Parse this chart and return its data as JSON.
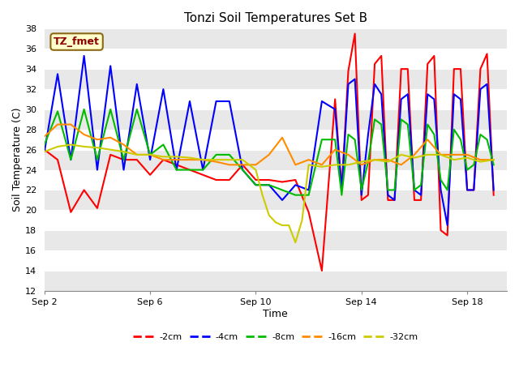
{
  "title": "Tonzi Soil Temperatures Set B",
  "xlabel": "Time",
  "ylabel": "Soil Temperature (C)",
  "ylim": [
    12,
    38
  ],
  "yticks": [
    12,
    14,
    16,
    18,
    20,
    22,
    24,
    26,
    28,
    30,
    32,
    34,
    36,
    38
  ],
  "annotation_label": "TZ_fmet",
  "annotation_color": "#8B0000",
  "annotation_bg": "#FFFFCC",
  "annotation_border": "#8B6914",
  "fig_bg": "#FFFFFF",
  "plot_bg": "#FFFFFF",
  "band_color_light": "#E8E8E8",
  "band_color_white": "#FFFFFF",
  "series": {
    "neg2cm": {
      "color": "#FF0000",
      "label": "-2cm",
      "x": [
        2.0,
        2.5,
        3.0,
        3.5,
        4.0,
        4.5,
        5.0,
        5.5,
        6.0,
        6.5,
        7.0,
        7.5,
        8.0,
        8.5,
        9.0,
        9.5,
        10.0,
        10.5,
        11.0,
        11.5,
        12.0,
        12.5,
        13.0,
        13.25,
        13.5,
        13.75,
        14.0,
        14.25,
        14.5,
        14.75,
        15.0,
        15.25,
        15.5,
        15.75,
        16.0,
        16.25,
        16.5,
        16.75,
        17.0,
        17.25,
        17.5,
        17.75,
        18.0,
        18.25,
        18.5,
        18.75,
        19.0
      ],
      "y": [
        26.0,
        25.0,
        19.8,
        22.0,
        20.2,
        25.5,
        25.0,
        25.0,
        23.5,
        25.0,
        24.5,
        24.0,
        23.5,
        23.0,
        23.0,
        24.5,
        23.0,
        23.0,
        22.8,
        23.0,
        19.8,
        14.0,
        31.0,
        22.0,
        33.8,
        37.5,
        21.0,
        21.5,
        34.5,
        35.3,
        21.0,
        21.0,
        34.0,
        34.0,
        21.0,
        21.0,
        34.5,
        35.3,
        18.0,
        17.5,
        34.0,
        34.0,
        22.0,
        22.0,
        34.0,
        35.5,
        21.5
      ]
    },
    "neg4cm": {
      "color": "#0000FF",
      "label": "-4cm",
      "x": [
        2.0,
        2.5,
        3.0,
        3.5,
        4.0,
        4.5,
        5.0,
        5.5,
        6.0,
        6.5,
        7.0,
        7.5,
        8.0,
        8.5,
        9.0,
        9.5,
        10.0,
        10.5,
        11.0,
        11.5,
        12.0,
        12.5,
        13.0,
        13.25,
        13.5,
        13.75,
        14.0,
        14.25,
        14.5,
        14.75,
        15.0,
        15.25,
        15.5,
        15.75,
        16.0,
        16.25,
        16.5,
        16.75,
        17.0,
        17.25,
        17.5,
        17.75,
        18.0,
        18.25,
        18.5,
        18.75,
        19.0
      ],
      "y": [
        25.8,
        33.5,
        25.0,
        35.3,
        24.0,
        34.3,
        24.0,
        32.5,
        25.0,
        32.0,
        24.0,
        30.8,
        24.0,
        30.8,
        30.8,
        24.0,
        22.5,
        22.5,
        21.0,
        22.5,
        22.0,
        30.8,
        30.0,
        22.0,
        32.5,
        33.0,
        21.5,
        27.5,
        32.5,
        31.5,
        21.5,
        21.0,
        31.0,
        31.5,
        22.0,
        21.5,
        31.5,
        31.0,
        22.0,
        18.5,
        31.5,
        31.0,
        22.0,
        22.0,
        32.0,
        32.5,
        22.0
      ]
    },
    "neg8cm": {
      "color": "#00BB00",
      "label": "-8cm",
      "x": [
        2.0,
        2.5,
        3.0,
        3.5,
        4.0,
        4.5,
        5.0,
        5.5,
        6.0,
        6.5,
        7.0,
        7.5,
        8.0,
        8.5,
        9.0,
        9.5,
        10.0,
        10.5,
        11.0,
        11.5,
        12.0,
        12.5,
        13.0,
        13.25,
        13.5,
        13.75,
        14.0,
        14.25,
        14.5,
        14.75,
        15.0,
        15.25,
        15.5,
        15.75,
        16.0,
        16.25,
        16.5,
        16.75,
        17.0,
        17.25,
        17.5,
        17.75,
        18.0,
        18.25,
        18.5,
        18.75,
        19.0
      ],
      "y": [
        26.5,
        29.8,
        25.0,
        30.0,
        25.0,
        30.0,
        25.0,
        30.0,
        25.5,
        26.5,
        24.0,
        24.0,
        24.0,
        25.5,
        25.5,
        24.0,
        22.5,
        22.5,
        22.0,
        21.5,
        21.5,
        27.0,
        27.0,
        21.5,
        27.5,
        27.0,
        22.0,
        24.8,
        29.0,
        28.5,
        22.0,
        22.0,
        29.0,
        28.5,
        22.0,
        22.5,
        28.5,
        27.5,
        23.0,
        22.0,
        28.0,
        27.0,
        24.0,
        24.5,
        27.5,
        27.0,
        24.5
      ]
    },
    "neg16cm": {
      "color": "#FF8C00",
      "label": "-16cm",
      "x": [
        2.0,
        2.5,
        3.0,
        3.5,
        4.0,
        4.5,
        5.0,
        5.5,
        6.0,
        6.5,
        7.0,
        7.5,
        8.0,
        8.5,
        9.0,
        9.5,
        10.0,
        10.5,
        11.0,
        11.5,
        12.0,
        12.5,
        13.0,
        13.5,
        14.0,
        14.5,
        15.0,
        15.5,
        16.0,
        16.5,
        17.0,
        17.5,
        18.0,
        18.5,
        19.0
      ],
      "y": [
        27.3,
        28.5,
        28.5,
        27.5,
        27.0,
        27.2,
        26.5,
        25.5,
        25.5,
        25.0,
        25.0,
        25.0,
        25.0,
        24.8,
        24.5,
        24.5,
        24.5,
        25.5,
        27.2,
        24.5,
        25.0,
        24.5,
        26.0,
        25.5,
        24.5,
        25.0,
        25.0,
        24.5,
        25.5,
        27.0,
        25.5,
        25.5,
        25.5,
        25.0,
        25.0
      ]
    },
    "neg32cm": {
      "color": "#CCCC00",
      "label": "-32cm",
      "x": [
        2.0,
        2.5,
        3.0,
        3.5,
        4.0,
        4.5,
        5.0,
        5.5,
        6.0,
        6.5,
        7.0,
        7.5,
        8.0,
        8.5,
        9.0,
        9.5,
        10.0,
        10.25,
        10.5,
        10.75,
        11.0,
        11.25,
        11.5,
        11.75,
        12.0,
        12.5,
        13.0,
        13.5,
        14.0,
        14.5,
        15.0,
        15.5,
        16.0,
        16.5,
        17.0,
        17.5,
        18.0,
        18.5,
        19.0
      ],
      "y": [
        25.8,
        26.3,
        26.5,
        26.3,
        26.2,
        26.0,
        25.8,
        25.5,
        25.5,
        25.3,
        25.3,
        25.2,
        25.0,
        25.0,
        25.0,
        25.0,
        24.0,
        21.5,
        19.5,
        18.8,
        18.5,
        18.5,
        16.8,
        19.0,
        24.5,
        24.3,
        24.5,
        24.5,
        24.8,
        25.0,
        24.8,
        25.5,
        25.2,
        25.5,
        25.5,
        25.0,
        25.2,
        24.8,
        25.0
      ]
    }
  },
  "xtick_labels": [
    "Sep 2",
    "Sep 6",
    "Sep 10",
    "Sep 14",
    "Sep 18"
  ],
  "xtick_positions": [
    2,
    6,
    10,
    14,
    18
  ]
}
